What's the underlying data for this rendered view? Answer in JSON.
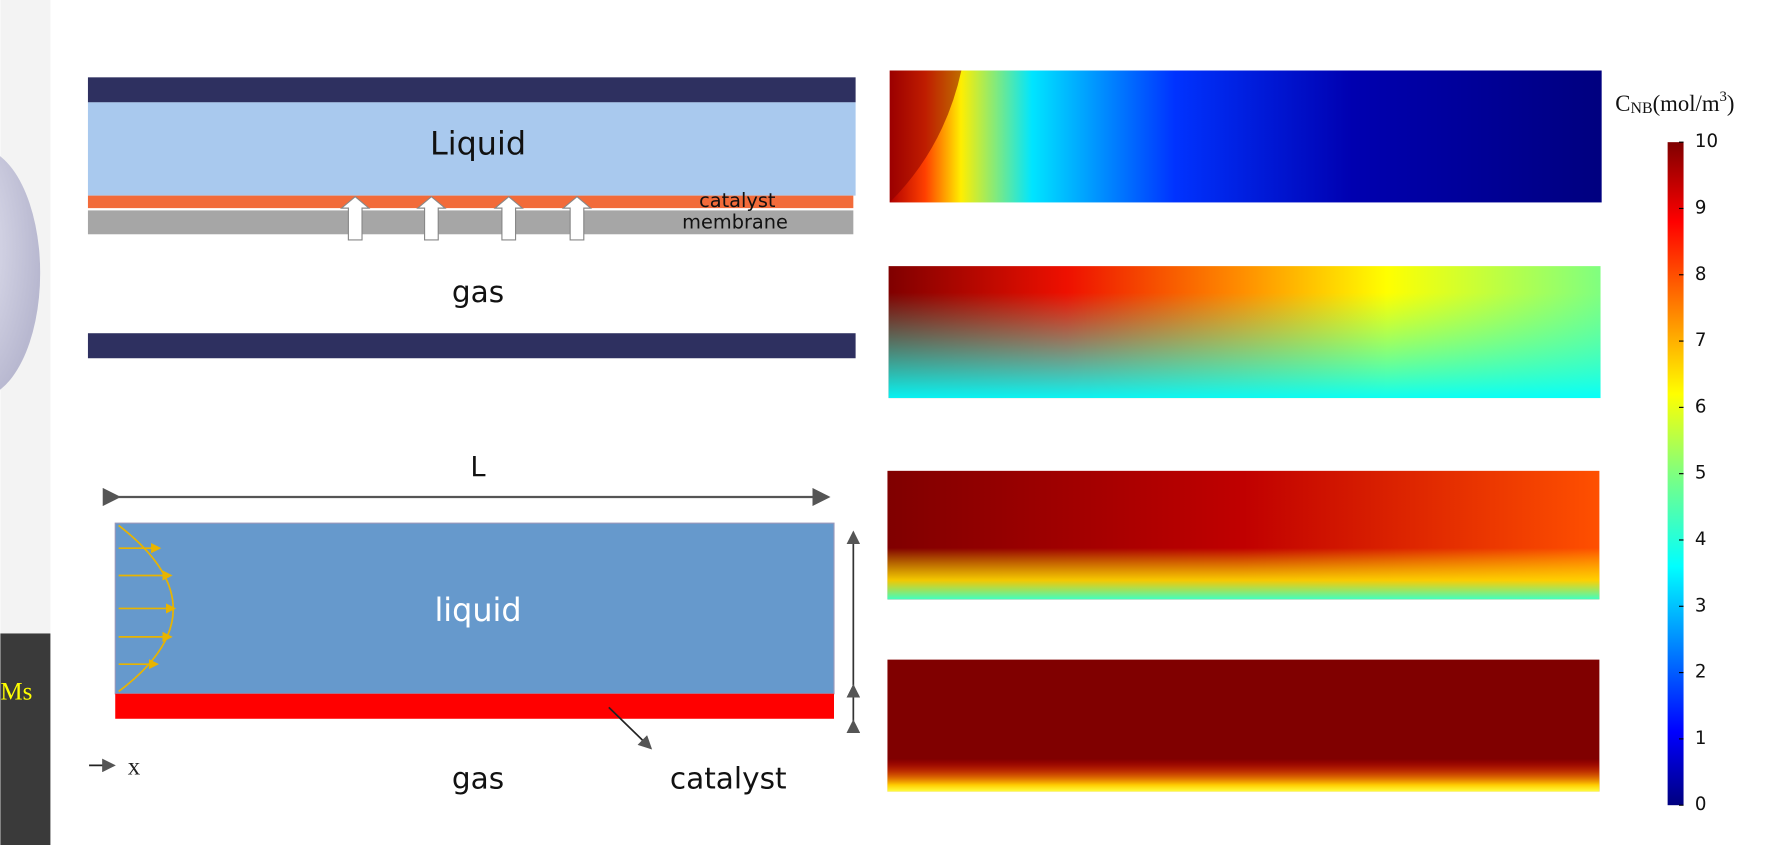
{
  "left_panel": {
    "label": "Ms"
  },
  "membrane_diagram": {
    "liquid": "Liquid",
    "catalyst": "catalyst",
    "membrane": "membrane",
    "gas": "gas"
  },
  "channel_diagram": {
    "length": "L",
    "liquid": "liquid",
    "gas": "gas",
    "catalyst": "catalyst",
    "axis": "x"
  },
  "colorbar": {
    "symbol": "C",
    "subscript": "NB",
    "unit": "(mol/m",
    "superscript": "3",
    "close": ")",
    "range": [
      0,
      10
    ],
    "ticks": [
      0,
      1,
      2,
      3,
      4,
      5,
      6,
      7,
      8,
      9,
      10
    ]
  }
}
